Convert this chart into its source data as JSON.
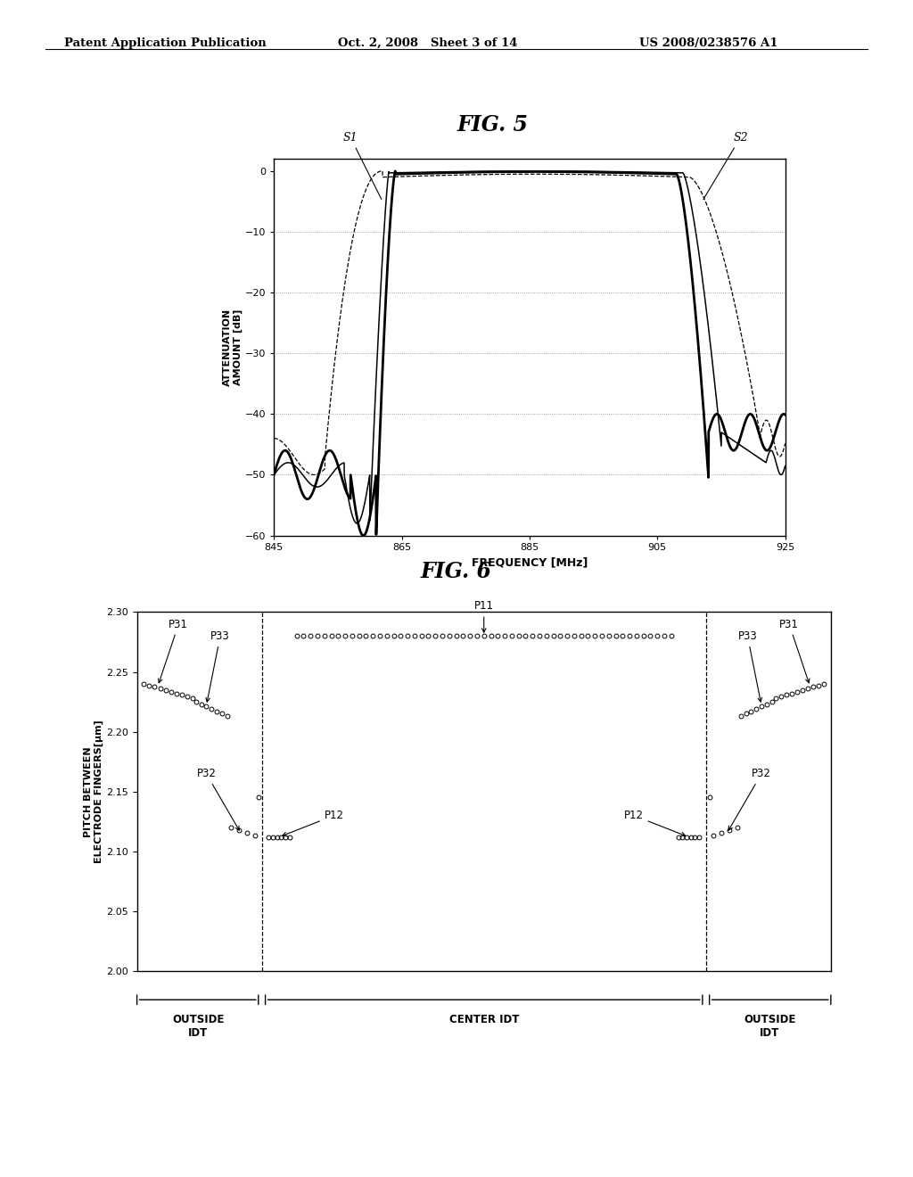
{
  "header_left": "Patent Application Publication",
  "header_mid": "Oct. 2, 2008   Sheet 3 of 14",
  "header_right": "US 2008/0238576 A1",
  "fig5_title": "FIG. 5",
  "fig5_xlabel": "FREQUENCY [MHz]",
  "fig5_ylabel_line1": "ATTENUATION",
  "fig5_ylabel_line2": "AMOUNT [dB]",
  "fig5_xlim": [
    845,
    925
  ],
  "fig5_ylim": [
    -60,
    2
  ],
  "fig5_xticks": [
    845,
    865,
    885,
    905,
    925
  ],
  "fig5_yticks": [
    0,
    -10,
    -20,
    -30,
    -40,
    -50,
    -60
  ],
  "fig5_grid_y": [
    -10,
    -20,
    -30,
    -40,
    -50
  ],
  "fig6_title": "FIG. 6",
  "fig6_ylabel": "PITCH BETWEEN\nELECTRODE FINGERS[μm]",
  "fig6_ylim": [
    2.0,
    2.3
  ],
  "fig6_yticks": [
    2.0,
    2.05,
    2.1,
    2.15,
    2.2,
    2.25,
    2.3
  ],
  "bg_color": "#ffffff",
  "plot_bg": "#ffffff",
  "grid_color": "#888888"
}
